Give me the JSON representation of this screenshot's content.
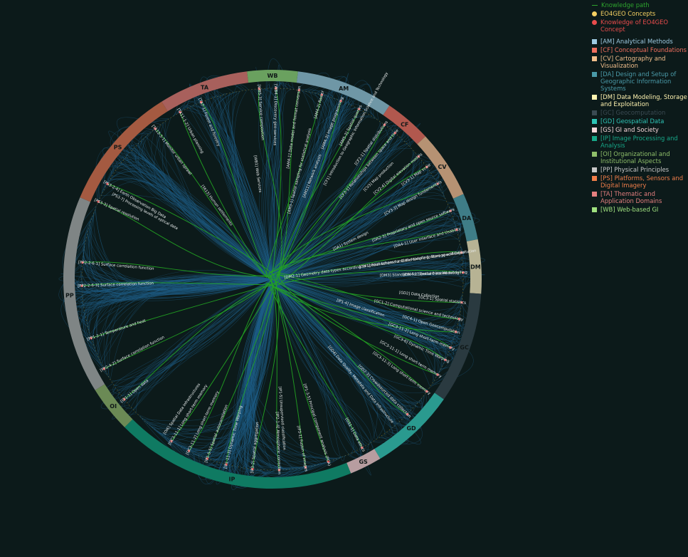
{
  "legend": {
    "knowledge_path": "Knowledge path",
    "concepts": "EO4GEO Concepts",
    "knowledge": "Knowledge of EO4GEO Concept",
    "areas": [
      {
        "label": "[AM] Analytical Methods",
        "color": "#9ecae1"
      },
      {
        "label": "[CF] Conceptual Foundations",
        "color": "#ef6f5e"
      },
      {
        "label": "[CV] Cartography and Visualization",
        "color": "#f2bf8c"
      },
      {
        "label": "[DA] Design and Setup of Geographic Information Systems",
        "color": "#4a9aa8"
      },
      {
        "label": "[DM] Data Modeling, Storage and Exploitation",
        "color": "#fff3b0"
      },
      {
        "label": "[GC] Geocomputation",
        "color": "#3a4a52"
      },
      {
        "label": "[GD] Geospatial Data",
        "color": "#2ec4b6"
      },
      {
        "label": "[GS] GI and Society",
        "color": "#f8d7da"
      },
      {
        "label": "[IP] Image Processing and Analysis",
        "color": "#17a889"
      },
      {
        "label": "[OI] Organizational and Institutional Aspects",
        "color": "#8fbf6a"
      },
      {
        "label": "[PP] Physical Principles",
        "color": "#c8c8c8"
      },
      {
        "label": "[PS] Platforms, Sensors and Digital Imagery",
        "color": "#f07e4a"
      },
      {
        "label": "[TA] Thematic and Application Domains",
        "color": "#e47f7f"
      },
      {
        "label": "[WB] Web-based GI",
        "color": "#9fe07f"
      }
    ]
  },
  "ring": [
    {
      "code": "AM",
      "start": 7,
      "end": 34,
      "color": "#6f97a6"
    },
    {
      "code": "CF",
      "start": 34,
      "end": 47,
      "color": "#b1584e"
    },
    {
      "code": "CV",
      "start": 47,
      "end": 66,
      "color": "#b69273"
    },
    {
      "code": "DA",
      "start": 66,
      "end": 79,
      "color": "#3f7d87"
    },
    {
      "code": "DM",
      "start": 79,
      "end": 94,
      "color": "#b7b394"
    },
    {
      "code": "GC",
      "start": 94,
      "end": 125,
      "color": "#2a3a40"
    },
    {
      "code": "GD",
      "start": 125,
      "end": 149,
      "color": "#2a9a8f"
    },
    {
      "code": "GS",
      "start": 149,
      "end": 158,
      "color": "#b79da0"
    },
    {
      "code": "IP",
      "start": 158,
      "end": 225,
      "color": "#0f7a62"
    },
    {
      "code": "OI",
      "start": 225,
      "end": 238,
      "color": "#6b8a55"
    },
    {
      "code": "PP",
      "start": 238,
      "end": 293,
      "color": "#7f8585"
    },
    {
      "code": "PS",
      "start": 293,
      "end": 328,
      "color": "#a45a41"
    },
    {
      "code": "TA",
      "start": 328,
      "end": 353,
      "color": "#a8605c"
    },
    {
      "code": "WB",
      "start": 353,
      "end": 367,
      "color": "#6aa15f"
    }
  ],
  "labels": [
    {
      "text": "[AM4-1] Data model and format conversion",
      "a": 8
    },
    {
      "text": "[AM4-2] Raster",
      "a": 15
    },
    {
      "text": "[AM4-3] Image programming",
      "a": 21
    },
    {
      "text": "[AM5-3] Spatial queries",
      "a": 27
    },
    {
      "text": "[CF2-1] Spatial distributions",
      "a": 36
    },
    {
      "text": "[CF3-1] Relationships between space and time",
      "a": 40
    },
    {
      "text": "[CV2-4] Digital elevation models",
      "a": 50
    },
    {
      "text": "[CV3-1] Map scale",
      "a": 54
    },
    {
      "text": "[CV3-3] Map design fundamentals",
      "a": 60
    },
    {
      "text": "[DA2-3] Proprietary and open source software",
      "a": 69
    },
    {
      "text": "[DA4-1] User interface and Usability",
      "a": 75
    },
    {
      "text": "[DM2-1] Geometry data types according to spatial schema and the simple feature specification",
      "a": 82
    },
    {
      "text": "[DM4-1] Feature based modelling",
      "a": 88
    },
    {
      "text": "[GC3-1] Spatial statistics",
      "a": 97
    },
    {
      "text": "[GC1-2] Computational science and technology",
      "a": 102
    },
    {
      "text": "[GC4-1] Open Geocomputation",
      "a": 106
    },
    {
      "text": "[GC3-11-2] Long short-term memory",
      "a": 111
    },
    {
      "text": "[GC3-6] Dynamic Time Warping",
      "a": 115
    },
    {
      "text": "[GC3-11-1] Long short-term memory",
      "a": 120
    },
    {
      "text": "[GC3-11-3] Long short-term memory",
      "a": 126
    },
    {
      "text": "[GD2-3] Crowdsourced data collection",
      "a": 135
    },
    {
      "text": "[GS1-1] Data ethics",
      "a": 152
    },
    {
      "text": "[IP1-3-5] Principal component analysis (PCA)",
      "a": 163
    },
    {
      "text": "[IP3-1] Fusion of images",
      "a": 170
    },
    {
      "text": "[IP2-1-4] Atmospheric correction",
      "a": 178
    },
    {
      "text": "[IP3-2] Spatial aggregation",
      "a": 186
    },
    {
      "text": "[IP1-11-3] Dynamic Time Warping",
      "a": 194
    },
    {
      "text": "[IP1-5-5] Spatial autocorrelation",
      "a": 200
    },
    {
      "text": "[GC3-11-2] Long short-term memory",
      "a": 206
    },
    {
      "text": "[GC3-11-1] Long short-term memory",
      "a": 212
    },
    {
      "text": "[OI1-1] Open data",
      "a": 231
    },
    {
      "text": "[PP2-4-2] Surface correlation function",
      "a": 242
    },
    {
      "text": "[PP1-2-1] Temperature and heat",
      "a": 252
    },
    {
      "text": "[PP2-2-6-3] Surface correlation function",
      "a": 268
    },
    {
      "text": "[PP2-2-6-1] Surface correlation function",
      "a": 275
    },
    {
      "text": "[PS3-3] Spatial resolution",
      "a": 294
    },
    {
      "text": "[PS3-2-4] Earth Observation Big Data",
      "a": 300
    },
    {
      "text": "[TA13-3-1] Monitor urban sprawl",
      "a": 322
    },
    {
      "text": "[TA11-1-2] Urban planning",
      "a": 331
    },
    {
      "text": "[TA7-1] Forest and forestry",
      "a": 338
    },
    {
      "text": "[WB5-3] Service composition",
      "a": 356
    },
    {
      "text": "[WB4-1] Discovery geo-services",
      "a": 361
    }
  ],
  "inner_labels": [
    {
      "text": "[AM3-1] Spatial sampling for statistical analysis",
      "a": 14
    },
    {
      "text": "[AM11] Network analysis",
      "a": 21
    },
    {
      "text": "[CF1] Introduction to Geographic Information Science and Technology",
      "a": 29
    },
    {
      "text": "[CV3] Map production",
      "a": 46
    },
    {
      "text": "[DA1] System design",
      "a": 64
    },
    {
      "text": "[DM1] Foundations for Data Modelling, Storage and Exploitation",
      "a": 82
    },
    {
      "text": "[DM3] Standards for Spatial Data Modeling",
      "a": 88
    },
    {
      "text": "[GD2] Data Collection",
      "a": 96
    },
    {
      "text": "[IP1-4] Image classification",
      "a": 108
    },
    {
      "text": "[GD4] Data Quality, Metadata and Data Infrastructure",
      "a": 140
    },
    {
      "text": "[IP1-5] Unsupervised classification",
      "a": 176
    },
    {
      "text": "[OI6] Spatial Data Infrastructures",
      "a": 215
    },
    {
      "text": "[TA13] Human settlements",
      "a": 323
    },
    {
      "text": "[WB1] Web Services",
      "a": 352
    },
    {
      "text": "[PS3-7] Processing levels of optical data",
      "a": 298
    }
  ]
}
